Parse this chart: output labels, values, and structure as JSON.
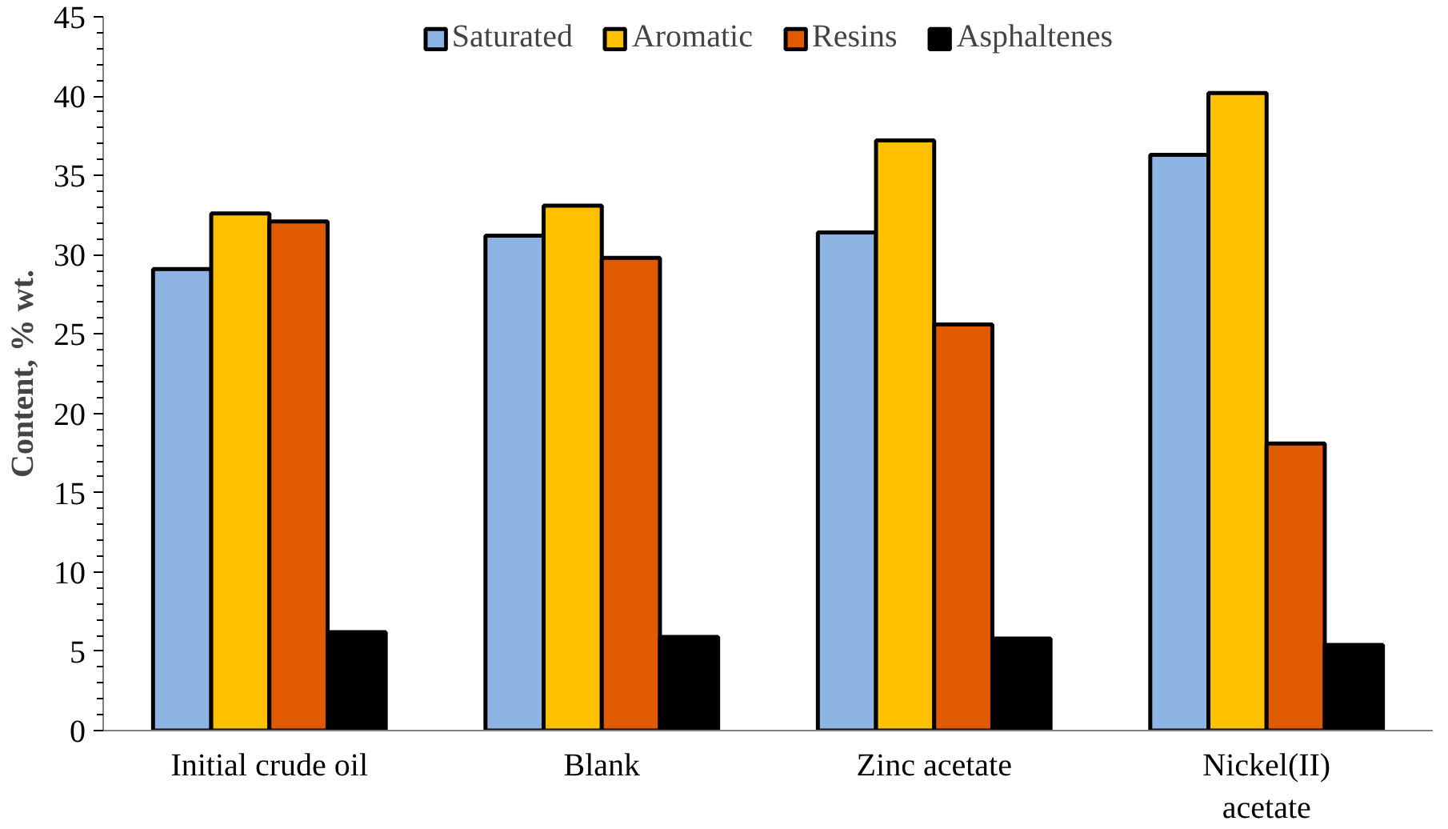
{
  "chart_data": {
    "type": "bar",
    "ylabel": "Content, % wt.",
    "categories": [
      "Initial crude oil",
      "Blank",
      "Zinc acetate",
      "Nickel(II)\nacetate"
    ],
    "series": [
      {
        "name": "Saturated",
        "color": "#8eb4e3",
        "values": [
          29.1,
          31.2,
          31.4,
          36.3
        ]
      },
      {
        "name": "Aromatic",
        "color": "#ffc000",
        "values": [
          32.6,
          33.1,
          37.2,
          40.2
        ]
      },
      {
        "name": "Resins",
        "color": "#e05a00",
        "values": [
          32.1,
          29.8,
          25.6,
          18.1
        ]
      },
      {
        "name": "Asphaltenes",
        "color": "#000000",
        "values": [
          6.2,
          5.9,
          5.8,
          5.4
        ]
      }
    ],
    "ylim": [
      0,
      45
    ],
    "yticks": [
      0,
      5,
      10,
      15,
      20,
      25,
      30,
      35,
      40,
      45
    ],
    "grid": false,
    "legend": "top"
  }
}
